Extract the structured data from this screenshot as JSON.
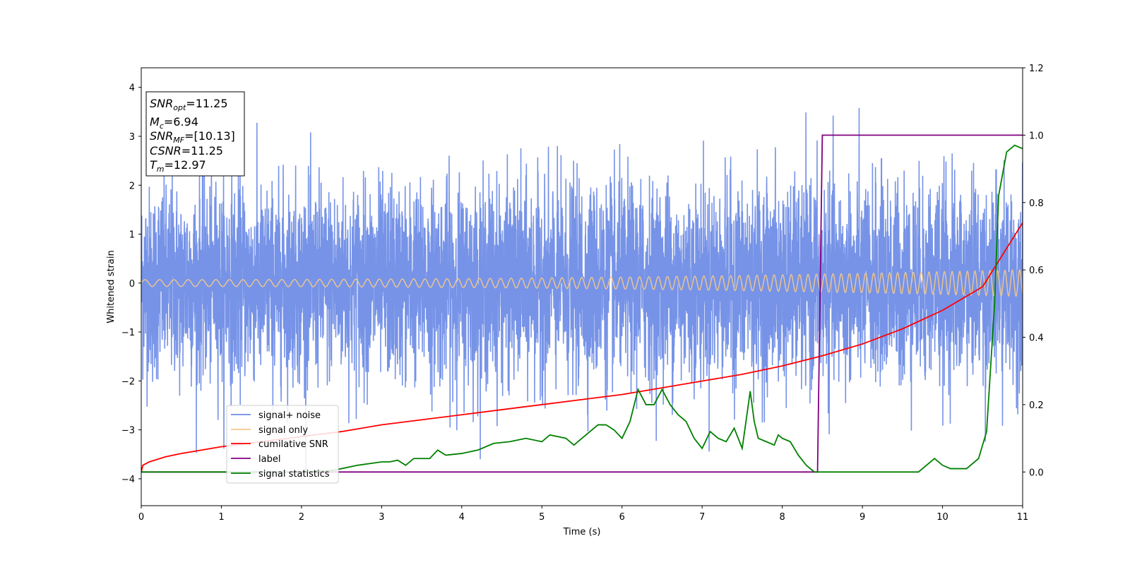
{
  "chart_data": {
    "type": "line",
    "xlabel": "Time (s)",
    "ylabel": "Whitened strain",
    "xlim": [
      0,
      11
    ],
    "ylim": [
      -4.55,
      4.4
    ],
    "y2lim": [
      -0.1,
      1.2
    ],
    "grid": false,
    "legend_position": "lower-left",
    "x_ticks": [
      "0",
      "1",
      "2",
      "3",
      "4",
      "5",
      "6",
      "7",
      "8",
      "9",
      "10",
      "11"
    ],
    "y_ticks": [
      "−4",
      "−3",
      "−2",
      "−1",
      "0",
      "1",
      "2",
      "3",
      "4"
    ],
    "y2_ticks": [
      "0.0",
      "0.2",
      "0.4",
      "0.6",
      "0.8",
      "1.0",
      "1.2"
    ],
    "annotation": [
      {
        "sym": "SNR",
        "sub": "opt",
        "val": "=11.25"
      },
      {
        "sym": "M",
        "sub": "c",
        "val": "=6.94"
      },
      {
        "sym": "SNR",
        "sub": "MF",
        "val": "=[10.13]"
      },
      {
        "sym": "CSNR",
        "sub": "",
        "val": "=11.25"
      },
      {
        "sym": "T",
        "sub": "m",
        "val": "=12.97"
      }
    ],
    "series": [
      {
        "name": "signal+ noise",
        "color": "#6f8de6",
        "axis": "left",
        "note": "whitened noisy strain, std ~1, range about -4.2 to 3.9"
      },
      {
        "name": "signal only",
        "color": "#f6c98a",
        "axis": "left",
        "note": "chirp; amplitude ~0.07 at t=0 rising to ~0.27 at t=11"
      },
      {
        "name": "cumilative SNR",
        "color": "#ff0000",
        "axis": "right",
        "x": [
          0,
          0.02,
          0.1,
          0.3,
          0.5,
          1,
          1.5,
          2,
          2.5,
          3,
          3.5,
          4,
          4.5,
          5,
          5.5,
          6,
          6.5,
          7,
          7.5,
          8,
          8.5,
          9,
          9.5,
          10,
          10.5,
          11
        ],
        "values": [
          0.0,
          0.02,
          0.03,
          0.045,
          0.055,
          0.075,
          0.09,
          0.105,
          0.12,
          0.14,
          0.155,
          0.17,
          0.185,
          0.2,
          0.215,
          0.23,
          0.25,
          0.27,
          0.29,
          0.315,
          0.345,
          0.38,
          0.425,
          0.48,
          0.55,
          0.74
        ]
      },
      {
        "name": "label",
        "color": "#800080",
        "axis": "right",
        "x": [
          0,
          8.44,
          8.5,
          11
        ],
        "values": [
          0,
          0,
          1,
          1
        ]
      },
      {
        "name": "signal statistics",
        "color": "#008000",
        "axis": "right",
        "x": [
          0,
          1,
          2,
          2.4,
          2.7,
          3,
          3.1,
          3.2,
          3.3,
          3.4,
          3.6,
          3.7,
          3.8,
          4.0,
          4.2,
          4.4,
          4.6,
          4.8,
          5.0,
          5.1,
          5.3,
          5.4,
          5.5,
          5.7,
          5.8,
          5.9,
          6.0,
          6.1,
          6.2,
          6.3,
          6.4,
          6.5,
          6.6,
          6.7,
          6.8,
          6.9,
          7.0,
          7.1,
          7.2,
          7.3,
          7.4,
          7.5,
          7.6,
          7.65,
          7.7,
          7.8,
          7.9,
          7.95,
          8.0,
          8.1,
          8.2,
          8.3,
          8.4,
          8.5,
          8.7,
          9.0,
          9.3,
          9.6,
          9.7,
          9.8,
          9.9,
          10.0,
          10.1,
          10.2,
          10.3,
          10.45,
          10.55,
          10.65,
          10.7,
          10.8,
          10.9,
          11.0
        ],
        "values": [
          0,
          0.0,
          0.0,
          0.005,
          0.02,
          0.03,
          0.03,
          0.035,
          0.02,
          0.04,
          0.04,
          0.065,
          0.05,
          0.055,
          0.065,
          0.085,
          0.09,
          0.1,
          0.09,
          0.11,
          0.1,
          0.08,
          0.1,
          0.14,
          0.14,
          0.125,
          0.1,
          0.15,
          0.245,
          0.2,
          0.2,
          0.245,
          0.2,
          0.17,
          0.15,
          0.1,
          0.07,
          0.12,
          0.1,
          0.09,
          0.13,
          0.07,
          0.24,
          0.15,
          0.1,
          0.09,
          0.08,
          0.11,
          0.1,
          0.09,
          0.05,
          0.02,
          0.0,
          0.0,
          0.0,
          0.0,
          0.0,
          0.0,
          0.0,
          0.02,
          0.04,
          0.02,
          0.01,
          0.01,
          0.01,
          0.04,
          0.12,
          0.5,
          0.82,
          0.95,
          0.97,
          0.96
        ]
      }
    ]
  }
}
